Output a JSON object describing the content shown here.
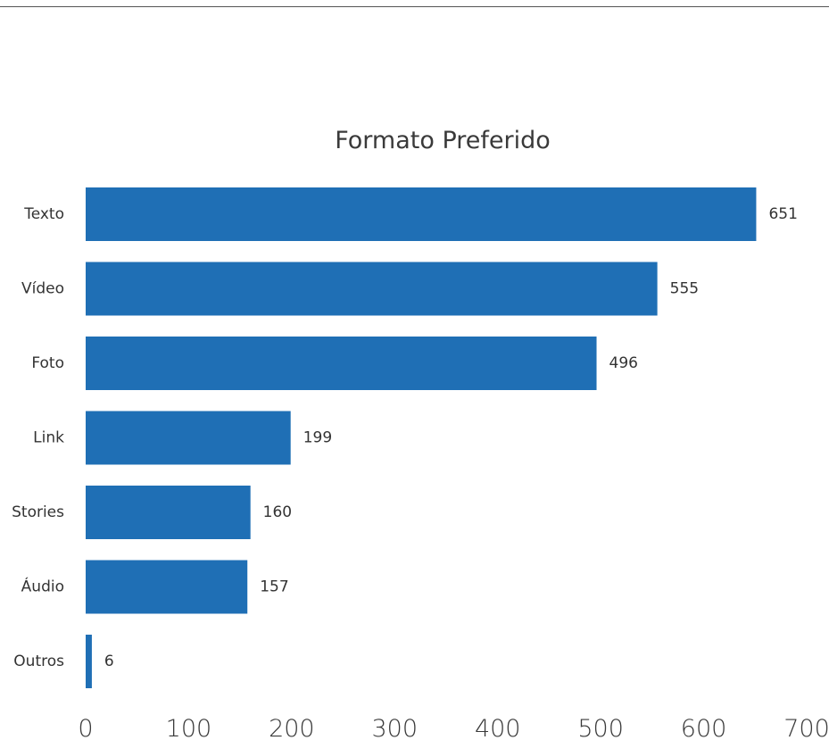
{
  "chart_data": {
    "type": "bar",
    "orientation": "horizontal",
    "title": "Formato Preferido",
    "xlabel": "",
    "ylabel": "",
    "categories": [
      "Texto",
      "Vídeo",
      "Foto",
      "Link",
      "Stories",
      "Áudio",
      "Outros"
    ],
    "values": [
      651,
      555,
      496,
      199,
      160,
      157,
      6
    ],
    "value_labels": [
      "651",
      "555",
      "496",
      "199",
      "160",
      "157",
      "6"
    ],
    "xlim": [
      0,
      700
    ],
    "x_ticks": [
      0,
      100,
      200,
      300,
      400,
      500,
      600,
      700
    ],
    "x_tick_labels": [
      "0",
      "100",
      "200",
      "300",
      "400",
      "500",
      "600",
      "700"
    ],
    "grid": false,
    "legend": "none",
    "bar_color": "#1f6fb5"
  }
}
